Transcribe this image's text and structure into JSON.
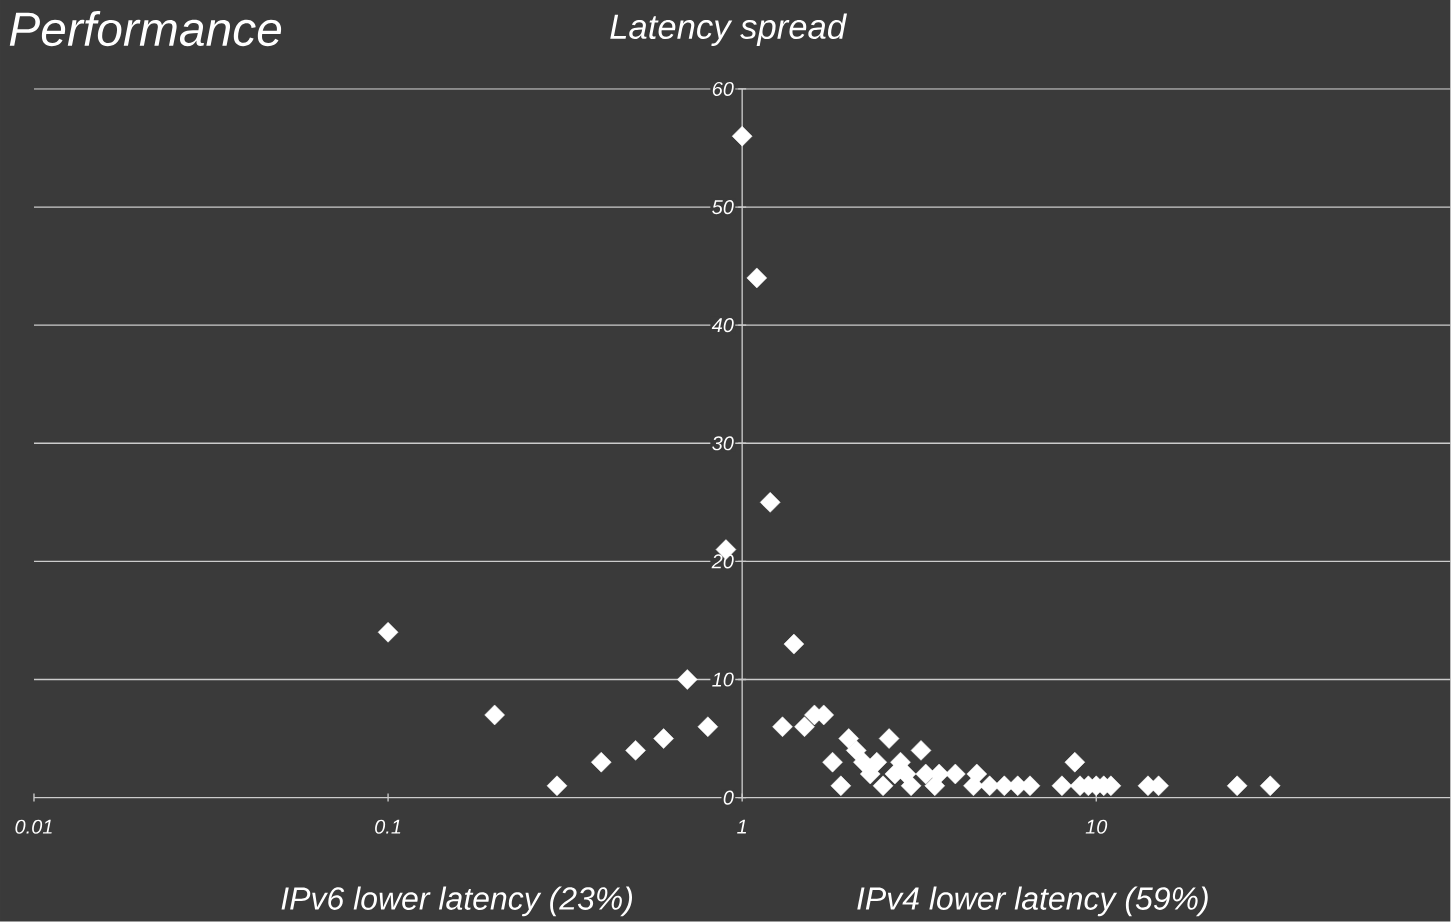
{
  "chart_data": {
    "type": "scatter",
    "title": "Performance",
    "subtitle": "Latency spread",
    "annotations": [
      "IPv6  lower latency (23%)",
      "IPv4  lower latency (59%)"
    ],
    "x": [
      0.1,
      0.2,
      0.3,
      0.4,
      0.5,
      0.6,
      0.7,
      0.8,
      0.9,
      1.0,
      1.1,
      1.2,
      1.3,
      1.4,
      1.5,
      1.6,
      1.7,
      1.8,
      1.9,
      2.0,
      2.1,
      2.2,
      2.3,
      2.4,
      2.5,
      2.6,
      2.7,
      2.8,
      2.9,
      3.0,
      3.2,
      3.3,
      3.5,
      3.6,
      4.0,
      4.5,
      4.6,
      5.0,
      5.5,
      6.0,
      6.5,
      8.0,
      8.7,
      9.0,
      9.5,
      10.0,
      10.5,
      11.0,
      14.0,
      15.0,
      25.0,
      31.0
    ],
    "values": [
      14,
      7,
      1,
      3,
      4,
      5,
      10,
      6,
      21,
      56,
      44,
      25,
      6,
      13,
      6,
      7,
      7,
      3,
      1,
      5,
      4,
      3,
      2,
      3,
      1,
      5,
      2,
      3,
      2,
      1,
      4,
      2,
      1,
      2,
      2,
      1,
      2,
      1,
      1,
      1,
      1,
      1,
      3,
      1,
      1,
      1,
      1,
      1,
      1,
      1,
      1,
      1
    ],
    "color": "#ffffff",
    "marker": "diamond",
    "log": "x",
    "grid": "y",
    "xlim": [
      0.01,
      100
    ],
    "ylim": [
      0,
      60
    ],
    "xticks": [
      0.01,
      0.1,
      1,
      10
    ],
    "yticks": [
      0,
      10,
      20,
      30,
      40,
      50,
      60
    ]
  }
}
